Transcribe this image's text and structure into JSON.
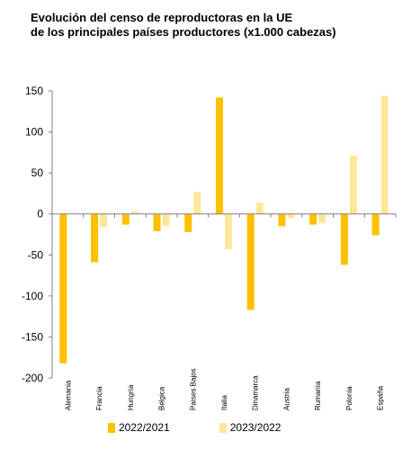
{
  "chart_data": {
    "type": "bar",
    "title_line1": "Evolución del censo de reproductoras en la UE",
    "title_line2": "de los principales países productores (x1.000 cabezas)",
    "categories": [
      "Alemania",
      "Francia",
      "Hungría",
      "Bélgica",
      "Países Bajos",
      "Italia",
      "Dinamarca",
      "Austria",
      "Rumanía",
      "Polonia",
      "España"
    ],
    "series": [
      {
        "name": "2022/2021",
        "color": "#FFC000",
        "values": [
          -182,
          -59,
          -13,
          -21,
          -22,
          142,
          -117,
          -15,
          -13,
          -62,
          -26
        ]
      },
      {
        "name": "2023/2022",
        "color": "#FFE699",
        "values": [
          null,
          -16,
          3,
          -15,
          27,
          -43,
          14,
          -5,
          -11,
          71,
          144
        ]
      }
    ],
    "ylim": [
      -200,
      150
    ],
    "yticks": [
      150,
      100,
      50,
      0,
      -50,
      -100,
      -150,
      -200
    ],
    "ytick_labels": [
      "150",
      "100",
      "50",
      "0",
      "-50",
      "-100",
      "-150",
      "-200"
    ],
    "grid": false,
    "legend_position": "bottom"
  }
}
